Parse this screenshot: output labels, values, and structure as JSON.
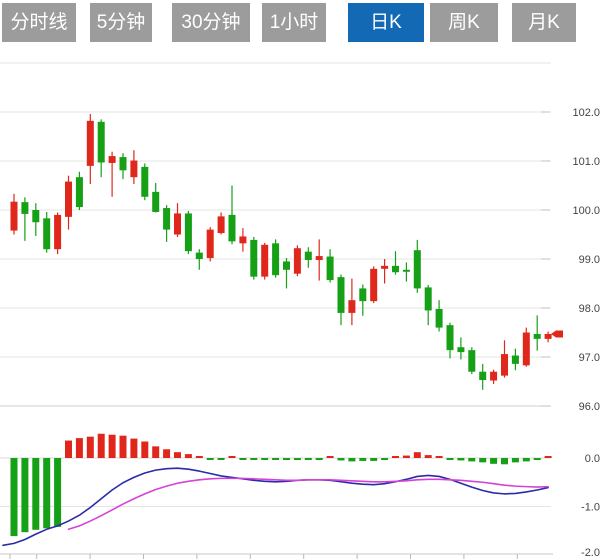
{
  "tabs": {
    "items": [
      {
        "label": "分时线",
        "active": false
      },
      {
        "label": "5分钟",
        "active": false
      },
      {
        "label": "30分钟",
        "active": false
      },
      {
        "label": "1小时",
        "active": false
      },
      {
        "label": "日K",
        "active": true
      },
      {
        "label": "周K",
        "active": false
      },
      {
        "label": "月K",
        "active": false
      }
    ]
  },
  "colors": {
    "up": "#e0271c",
    "down": "#16a016",
    "dif_line": "#2b2baa",
    "dea_line": "#d542d5",
    "tab_active_bg": "#1469b4",
    "tab_inactive_bg": "#9c9c9c",
    "tab_text": "#ffffff",
    "grid": "#e4e4e4",
    "grid_dark": "#c9c9c9",
    "axis_text": "#444444"
  },
  "chart_data": {
    "type": "candlestick",
    "title": "",
    "legend_position": "none",
    "grid": true,
    "price_panel": {
      "ylabel": "",
      "ylim": [
        95.9,
        103.0
      ],
      "y_tick_labels": [
        "102.0",
        "101.0",
        "100.0",
        "99.0",
        "98.0",
        "97.0",
        "96.0"
      ],
      "y_tick_values": [
        102,
        101,
        100,
        99,
        98,
        97,
        96
      ],
      "columns": [
        "open",
        "high",
        "low",
        "close"
      ],
      "candles": [
        [
          99.58,
          100.33,
          99.5,
          100.17
        ],
        [
          100.16,
          100.26,
          99.37,
          99.92
        ],
        [
          100.0,
          100.14,
          99.47,
          99.75
        ],
        [
          99.83,
          99.96,
          99.13,
          99.2
        ],
        [
          99.2,
          99.95,
          99.1,
          99.9
        ],
        [
          99.86,
          100.7,
          99.6,
          100.58
        ],
        [
          100.67,
          100.78,
          100.0,
          100.06
        ],
        [
          100.9,
          101.96,
          100.53,
          101.82
        ],
        [
          101.8,
          101.85,
          100.67,
          100.97
        ],
        [
          100.96,
          101.19,
          100.27,
          101.1
        ],
        [
          101.08,
          101.16,
          100.63,
          100.81
        ],
        [
          100.67,
          101.22,
          100.53,
          101.01
        ],
        [
          100.88,
          100.95,
          100.2,
          100.27
        ],
        [
          100.37,
          100.55,
          99.95,
          99.96
        ],
        [
          100.04,
          100.1,
          99.35,
          99.6
        ],
        [
          99.5,
          100.14,
          99.45,
          99.93
        ],
        [
          99.93,
          99.98,
          99.1,
          99.16
        ],
        [
          99.13,
          99.2,
          98.78,
          99.0
        ],
        [
          99.02,
          99.65,
          98.95,
          99.6
        ],
        [
          99.53,
          99.95,
          99.5,
          99.87
        ],
        [
          99.9,
          100.5,
          99.3,
          99.36
        ],
        [
          99.32,
          99.63,
          99.15,
          99.46
        ],
        [
          99.39,
          99.45,
          98.58,
          98.64
        ],
        [
          98.64,
          99.33,
          98.58,
          99.29
        ],
        [
          99.32,
          99.4,
          98.62,
          98.67
        ],
        [
          98.95,
          99.02,
          98.4,
          98.78
        ],
        [
          98.7,
          99.28,
          98.65,
          99.22
        ],
        [
          99.15,
          99.24,
          98.82,
          98.98
        ],
        [
          98.98,
          99.4,
          98.56,
          99.06
        ],
        [
          99.05,
          99.2,
          98.52,
          98.57
        ],
        [
          98.63,
          98.68,
          97.65,
          97.9
        ],
        [
          97.9,
          98.6,
          97.65,
          98.16
        ],
        [
          98.4,
          98.48,
          97.84,
          98.14
        ],
        [
          98.14,
          98.85,
          98.1,
          98.8
        ],
        [
          98.8,
          99.0,
          98.5,
          98.86
        ],
        [
          98.86,
          99.16,
          98.68,
          98.73
        ],
        [
          98.78,
          98.93,
          98.54,
          98.74
        ],
        [
          99.18,
          99.39,
          98.31,
          98.4
        ],
        [
          98.42,
          98.47,
          97.65,
          97.95
        ],
        [
          97.98,
          98.16,
          97.52,
          97.6
        ],
        [
          97.65,
          97.7,
          96.97,
          97.14
        ],
        [
          97.2,
          97.4,
          96.95,
          97.1
        ],
        [
          97.14,
          97.2,
          96.65,
          96.7
        ],
        [
          96.7,
          96.86,
          96.33,
          96.53
        ],
        [
          96.52,
          96.74,
          96.45,
          96.7
        ],
        [
          96.62,
          97.34,
          96.58,
          97.06
        ],
        [
          97.03,
          97.17,
          96.73,
          96.86
        ],
        [
          96.83,
          97.6,
          96.8,
          97.5
        ],
        [
          97.47,
          97.85,
          97.13,
          97.37
        ],
        [
          97.37,
          97.52,
          97.3,
          97.47
        ]
      ],
      "last_price_marker": 97.47
    },
    "macd_panel": {
      "y_tick_labels": [
        "0.0",
        "-1.0",
        "-2.0"
      ],
      "y_tick_values": [
        0,
        -1,
        -2
      ],
      "histogram": [
        -1.61,
        -1.53,
        -1.48,
        -1.45,
        -1.42,
        0.36,
        0.41,
        0.44,
        0.5,
        0.48,
        0.46,
        0.4,
        0.34,
        0.24,
        0.18,
        0.12,
        0.08,
        0.04,
        -0.03,
        -0.03,
        0.02,
        -0.01,
        -0.03,
        -0.04,
        -0.04,
        -0.04,
        -0.04,
        -0.04,
        -0.01,
        0.02,
        -0.05,
        -0.07,
        -0.06,
        -0.06,
        -0.01,
        0.03,
        0.05,
        0.12,
        0.06,
        0.02,
        -0.02,
        -0.05,
        -0.07,
        -0.09,
        -0.12,
        -0.13,
        -0.09,
        -0.07,
        -0.03,
        0.03
      ],
      "dif_lead": -1.8,
      "dif": [
        -1.76,
        -1.68,
        -1.57,
        -1.47,
        -1.4,
        -1.3,
        -1.18,
        -1.02,
        -0.84,
        -0.66,
        -0.51,
        -0.4,
        -0.31,
        -0.25,
        -0.22,
        -0.21,
        -0.23,
        -0.27,
        -0.32,
        -0.37,
        -0.4,
        -0.43,
        -0.46,
        -0.48,
        -0.49,
        -0.48,
        -0.46,
        -0.45,
        -0.45,
        -0.46,
        -0.49,
        -0.52,
        -0.54,
        -0.55,
        -0.53,
        -0.49,
        -0.44,
        -0.38,
        -0.36,
        -0.38,
        -0.44,
        -0.52,
        -0.6,
        -0.67,
        -0.72,
        -0.74,
        -0.73,
        -0.7,
        -0.66,
        -0.61
      ],
      "dea": [
        null,
        null,
        null,
        null,
        null,
        -1.47,
        -1.4,
        -1.3,
        -1.19,
        -1.07,
        -0.95,
        -0.84,
        -0.74,
        -0.65,
        -0.58,
        -0.52,
        -0.48,
        -0.45,
        -0.43,
        -0.42,
        -0.42,
        -0.42,
        -0.43,
        -0.44,
        -0.45,
        -0.46,
        -0.46,
        -0.45,
        -0.45,
        -0.45,
        -0.46,
        -0.47,
        -0.48,
        -0.49,
        -0.49,
        -0.48,
        -0.47,
        -0.45,
        -0.44,
        -0.44,
        -0.45,
        -0.46,
        -0.48,
        -0.5,
        -0.53,
        -0.56,
        -0.58,
        -0.59,
        -0.6,
        -0.59
      ]
    }
  }
}
